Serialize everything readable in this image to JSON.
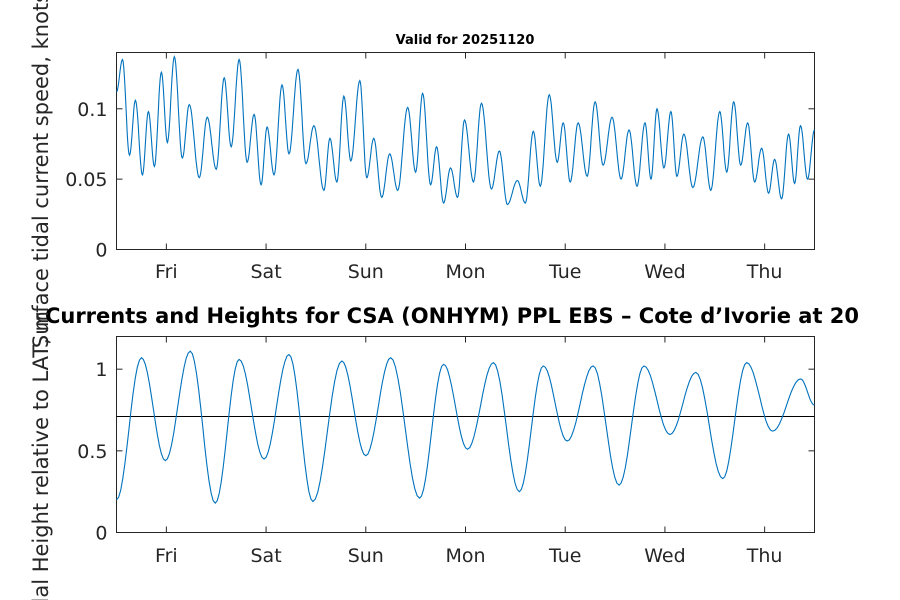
{
  "chart_data": [
    {
      "type": "line",
      "title": "Valid for 20251120",
      "xlabel": "",
      "ylabel": "Surface tidal current speed, knots",
      "x_tick_labels": [
        "Fri",
        "Sat",
        "Sun",
        "Mon",
        "Tue",
        "Wed",
        "Thu"
      ],
      "x_tick_positions_days": [
        0.5,
        1.5,
        2.5,
        3.5,
        4.5,
        5.5,
        6.5
      ],
      "xlim_days": [
        0,
        7
      ],
      "ylim": [
        0,
        0.14
      ],
      "y_ticks": [
        0,
        0.05,
        0.1
      ],
      "y_tick_labels": [
        "0",
        "0.05",
        "0.1"
      ],
      "series": [
        {
          "name": "Surface tidal current speed",
          "x": [
            0.0,
            0.06,
            0.13,
            0.19,
            0.26,
            0.32,
            0.38,
            0.45,
            0.51,
            0.58,
            0.66,
            0.73,
            0.83,
            0.91,
            1.0,
            1.08,
            1.15,
            1.23,
            1.31,
            1.38,
            1.45,
            1.51,
            1.58,
            1.66,
            1.73,
            1.82,
            1.9,
            1.98,
            2.08,
            2.14,
            2.21,
            2.28,
            2.35,
            2.44,
            2.51,
            2.58,
            2.66,
            2.74,
            2.82,
            2.92,
            3.0,
            3.07,
            3.15,
            3.21,
            3.28,
            3.35,
            3.42,
            3.49,
            3.58,
            3.66,
            3.76,
            3.84,
            3.92,
            4.02,
            4.1,
            4.18,
            4.25,
            4.34,
            4.42,
            4.48,
            4.55,
            4.63,
            4.72,
            4.8,
            4.88,
            4.97,
            5.06,
            5.14,
            5.22,
            5.3,
            5.36,
            5.42,
            5.49,
            5.56,
            5.62,
            5.69,
            5.78,
            5.88,
            5.96,
            6.05,
            6.12,
            6.19,
            6.26,
            6.33,
            6.4,
            6.47,
            6.54,
            6.6,
            6.67,
            6.74,
            6.8,
            6.86,
            6.93,
            7.0
          ],
          "y": [
            0.112,
            0.135,
            0.067,
            0.106,
            0.053,
            0.098,
            0.059,
            0.126,
            0.076,
            0.137,
            0.065,
            0.103,
            0.051,
            0.094,
            0.057,
            0.122,
            0.073,
            0.135,
            0.062,
            0.096,
            0.046,
            0.087,
            0.053,
            0.117,
            0.068,
            0.128,
            0.061,
            0.088,
            0.042,
            0.079,
            0.048,
            0.109,
            0.063,
            0.12,
            0.051,
            0.079,
            0.037,
            0.068,
            0.042,
            0.101,
            0.055,
            0.111,
            0.046,
            0.073,
            0.033,
            0.058,
            0.037,
            0.092,
            0.048,
            0.104,
            0.043,
            0.07,
            0.032,
            0.049,
            0.033,
            0.084,
            0.045,
            0.11,
            0.062,
            0.09,
            0.048,
            0.09,
            0.052,
            0.105,
            0.06,
            0.094,
            0.05,
            0.085,
            0.045,
            0.09,
            0.05,
            0.1,
            0.058,
            0.098,
            0.052,
            0.082,
            0.044,
            0.08,
            0.042,
            0.098,
            0.055,
            0.105,
            0.06,
            0.09,
            0.048,
            0.072,
            0.04,
            0.064,
            0.036,
            0.082,
            0.047,
            0.088,
            0.05,
            0.085
          ]
        }
      ]
    },
    {
      "type": "line",
      "title": "Currents and Heights for CSA (ONHYM) PPL EBS  – Cote d’Ivorie at 20",
      "xlabel": "",
      "ylabel": "Tidal Height relative to LAT, m",
      "x_tick_labels": [
        "Fri",
        "Sat",
        "Sun",
        "Mon",
        "Tue",
        "Wed",
        "Thu"
      ],
      "x_tick_positions_days": [
        0.5,
        1.5,
        2.5,
        3.5,
        4.5,
        5.5,
        6.5
      ],
      "xlim_days": [
        0,
        7
      ],
      "ylim": [
        0,
        1.2
      ],
      "y_ticks": [
        0,
        0.5,
        1
      ],
      "y_tick_labels": [
        "0",
        "0.5",
        "1"
      ],
      "reference_line": 0.71,
      "series": [
        {
          "name": "Tidal Height",
          "x": [
            0.0,
            0.25,
            0.49,
            0.74,
            0.99,
            1.23,
            1.48,
            1.73,
            1.97,
            2.26,
            2.5,
            2.75,
            3.04,
            3.28,
            3.52,
            3.78,
            4.04,
            4.28,
            4.52,
            4.78,
            5.04,
            5.29,
            5.55,
            5.81,
            6.08,
            6.32,
            6.58,
            6.86,
            7.0
          ],
          "y": [
            0.2,
            1.07,
            0.44,
            1.11,
            0.18,
            1.06,
            0.45,
            1.09,
            0.19,
            1.05,
            0.47,
            1.07,
            0.21,
            1.03,
            0.51,
            1.04,
            0.25,
            1.02,
            0.56,
            1.02,
            0.29,
            1.02,
            0.6,
            0.98,
            0.33,
            1.04,
            0.62,
            0.94,
            0.78
          ]
        }
      ]
    }
  ]
}
